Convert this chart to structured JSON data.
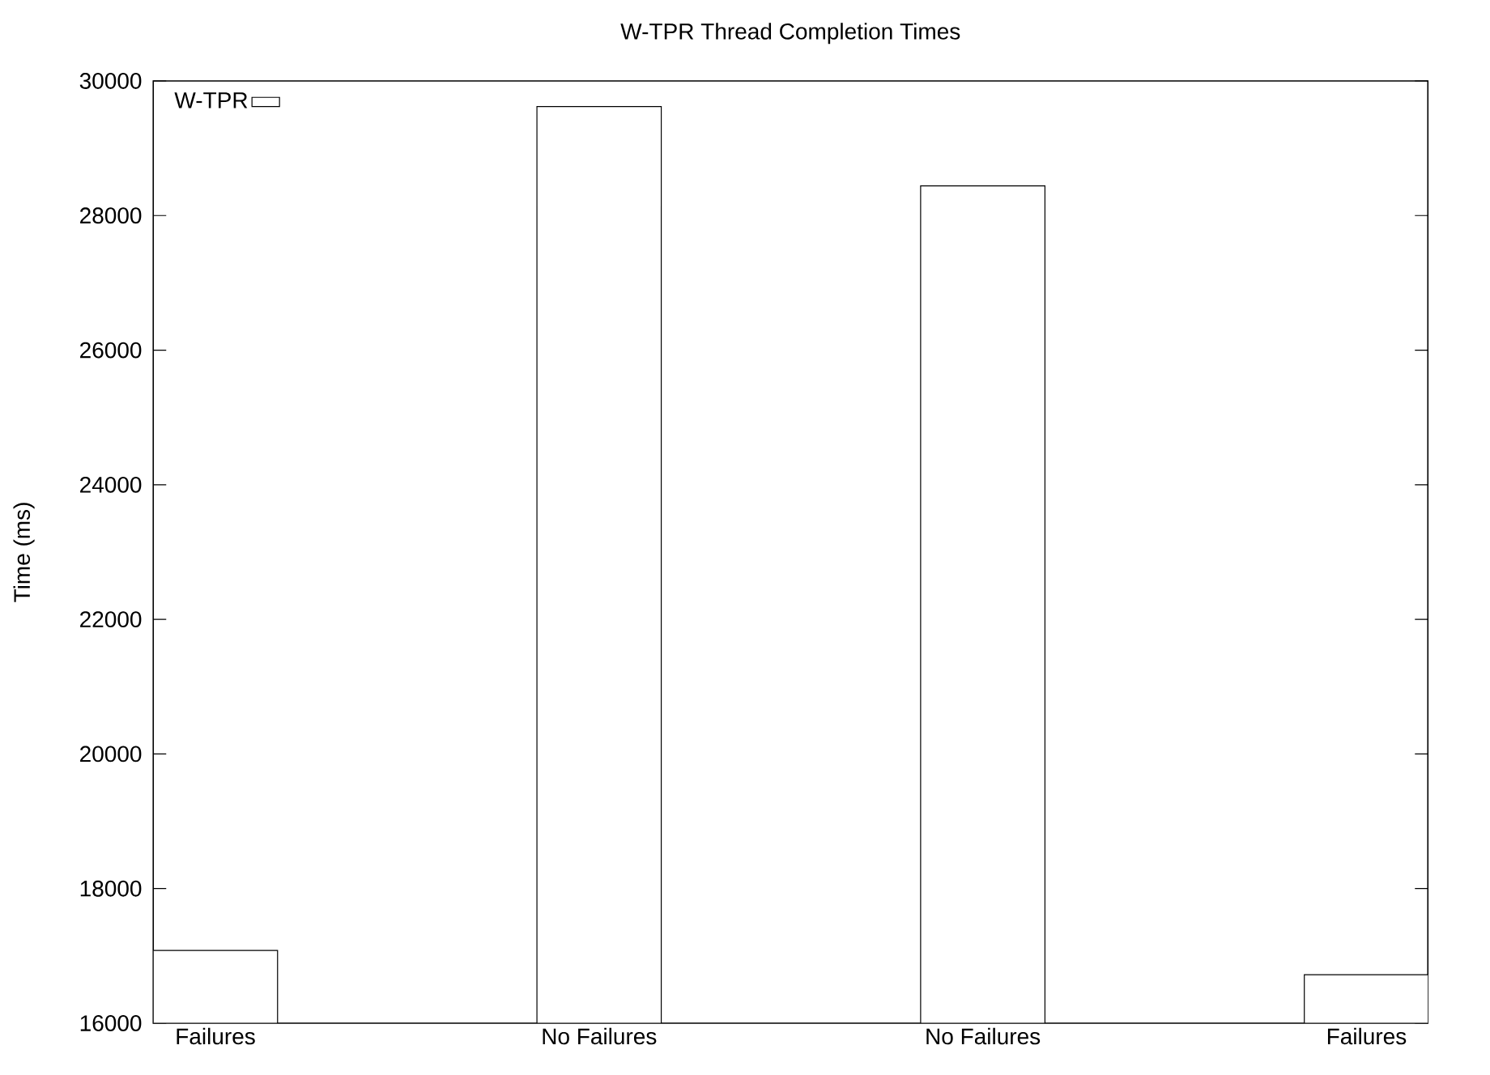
{
  "chart_data": {
    "type": "bar",
    "title": "W-TPR Thread Completion Times",
    "ylabel": "Time (ms)",
    "categories": [
      "Failures",
      "No Failures",
      "No Failures",
      "Failures"
    ],
    "series": [
      {
        "name": "W-TPR",
        "color": "#000000",
        "values": [
          17080,
          29620,
          28440,
          16720
        ]
      }
    ],
    "ylim": [
      16000,
      30000
    ],
    "yticks": [
      16000,
      18000,
      20000,
      22000,
      24000,
      26000,
      28000,
      30000
    ],
    "legend": "top left",
    "grid": false
  }
}
